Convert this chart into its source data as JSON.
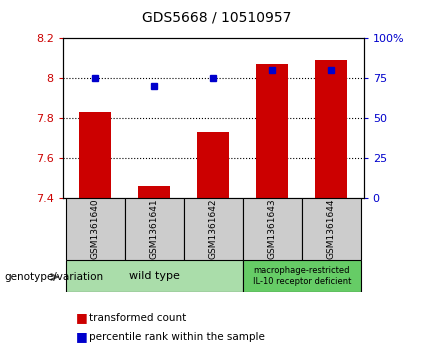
{
  "title": "GDS5668 / 10510957",
  "samples": [
    "GSM1361640",
    "GSM1361641",
    "GSM1361642",
    "GSM1361643",
    "GSM1361644"
  ],
  "bar_values": [
    7.83,
    7.46,
    7.73,
    8.07,
    8.09
  ],
  "percentile_values": [
    75,
    70,
    75,
    80,
    80
  ],
  "ylim_left": [
    7.4,
    8.2
  ],
  "ylim_right": [
    0,
    100
  ],
  "yticks_left": [
    7.4,
    7.6,
    7.8,
    8.0,
    8.2
  ],
  "ytick_labels_left": [
    "7.4",
    "7.6",
    "7.8",
    "8",
    "8.2"
  ],
  "yticks_right": [
    0,
    25,
    50,
    75,
    100
  ],
  "ytick_labels_right": [
    "0",
    "25",
    "50",
    "75",
    "100%"
  ],
  "bar_color": "#cc0000",
  "dot_color": "#0000cc",
  "sample_box_color": "#cccccc",
  "genotype_box_color_wt": "#aaddaa",
  "genotype_box_color_ko": "#66cc66",
  "fig_width": 4.33,
  "fig_height": 3.63,
  "dpi": 100
}
